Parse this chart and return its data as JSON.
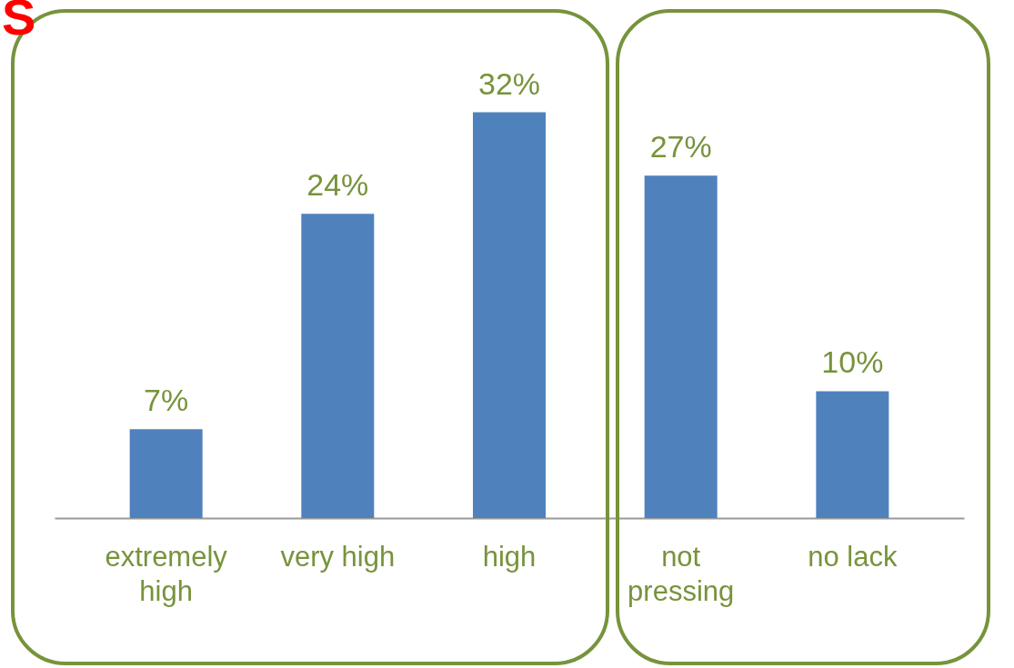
{
  "chart_data": {
    "type": "bar",
    "categories": [
      "extremely high",
      "very high",
      "high",
      "not pressing",
      "no lack"
    ],
    "values": [
      7,
      24,
      32,
      27,
      10
    ],
    "value_labels": [
      "7%",
      "24%",
      "32%",
      "27%",
      "10%"
    ],
    "color": "#4f81bd",
    "annotations": [
      "S"
    ]
  }
}
